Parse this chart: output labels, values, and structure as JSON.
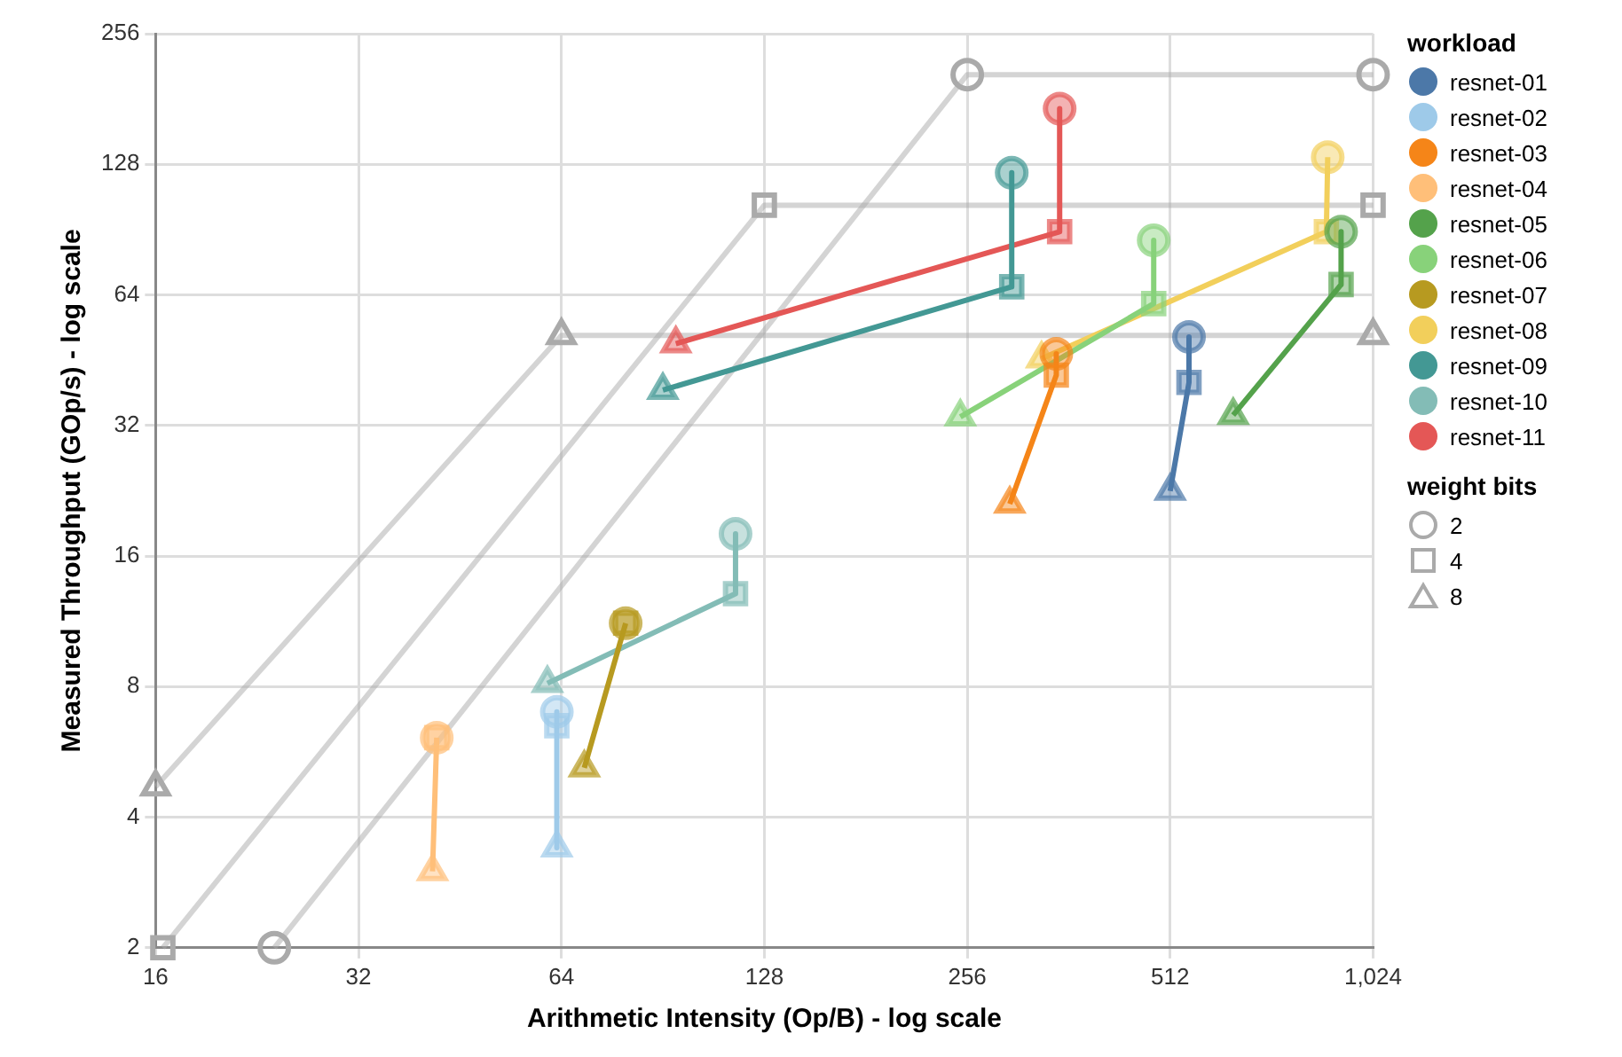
{
  "chart_data": {
    "type": "line",
    "xlabel": "Arithmetic Intensity (Op/B) - log scale",
    "ylabel": "Measured Throughput (GOp/s) - log scale",
    "legend_title": [
      "workload",
      "weight bits"
    ],
    "log": "xy",
    "grid": true,
    "legend": "right",
    "xlim": [
      16,
      1024
    ],
    "xticks": [
      16,
      32,
      64,
      128,
      256,
      512,
      {
        "value": 1024,
        "label": "1,024"
      }
    ],
    "ylim": [
      2,
      256
    ],
    "yticks": [
      2,
      4,
      8,
      16,
      32,
      64,
      128,
      256
    ],
    "series": [
      {
        "name": "2",
        "color": "#aaaaaa",
        "marker": "circle",
        "x": [
          24,
          256,
          1024
        ],
        "values": [
          2,
          206,
          206
        ]
      },
      {
        "name": "4",
        "color": "#aaaaaa",
        "marker": "square",
        "x": [
          16.4,
          128,
          1024
        ],
        "values": [
          2,
          103,
          103
        ]
      },
      {
        "name": "8",
        "color": "#aaaaaa",
        "marker": "triangle",
        "x": [
          16,
          64,
          1024
        ],
        "values": [
          4.7,
          51.6,
          51.6
        ]
      },
      {
        "name": "resnet-01",
        "color": "#4c78a8",
        "marker": [
          "circle",
          "square",
          "triangle"
        ],
        "x": [
          546,
          546,
          512
        ],
        "values": [
          51.2,
          40.2,
          22.6
        ]
      },
      {
        "name": "resnet-02",
        "color": "#9ecae9",
        "marker": [
          "circle",
          "square",
          "triangle"
        ],
        "x": [
          63,
          63,
          63
        ],
        "values": [
          7.0,
          6.5,
          3.4
        ]
      },
      {
        "name": "resnet-03",
        "color": "#f58518",
        "marker": [
          "circle",
          "square",
          "triangle"
        ],
        "x": [
          347,
          347,
          296
        ],
        "values": [
          46.8,
          41.8,
          21.1
        ]
      },
      {
        "name": "resnet-04",
        "color": "#ffbf79",
        "marker": [
          "circle",
          "square",
          "triangle"
        ],
        "x": [
          41.8,
          41.8,
          41.2
        ],
        "values": [
          6.1,
          6.1,
          3.0
        ]
      },
      {
        "name": "resnet-05",
        "color": "#54a24b",
        "marker": [
          "circle",
          "square",
          "triangle"
        ],
        "x": [
          918,
          918,
          635
        ],
        "values": [
          89.5,
          67.6,
          33.8
        ]
      },
      {
        "name": "resnet-06",
        "color": "#88d27a",
        "marker": [
          "circle",
          "square",
          "triangle"
        ],
        "x": [
          484,
          484,
          250
        ],
        "values": [
          85.5,
          61.1,
          33.5
        ]
      },
      {
        "name": "resnet-07",
        "color": "#b79a20",
        "marker": [
          "circle",
          "square",
          "triangle"
        ],
        "x": [
          79.7,
          79.7,
          69.2
        ],
        "values": [
          11.2,
          11.2,
          5.2
        ]
      },
      {
        "name": "resnet-08",
        "color": "#f2cf5b",
        "marker": [
          "circle",
          "square",
          "triangle"
        ],
        "x": [
          877,
          873,
          330
        ],
        "values": [
          132.9,
          89.5,
          45.6
        ]
      },
      {
        "name": "resnet-09",
        "color": "#439894",
        "marker": [
          "circle",
          "square",
          "triangle"
        ],
        "x": [
          298,
          298,
          90.5
        ],
        "values": [
          122.4,
          66.8,
          38.6
        ]
      },
      {
        "name": "resnet-10",
        "color": "#83bcb6",
        "marker": [
          "circle",
          "square",
          "triangle"
        ],
        "x": [
          116,
          116,
          61
        ],
        "values": [
          18.0,
          13.1,
          8.14
        ]
      },
      {
        "name": "resnet-11",
        "color": "#e45756",
        "marker": [
          "circle",
          "square",
          "triangle"
        ],
        "x": [
          351,
          351,
          94.6
        ],
        "values": [
          172,
          89.5,
          49.4
        ]
      }
    ]
  }
}
